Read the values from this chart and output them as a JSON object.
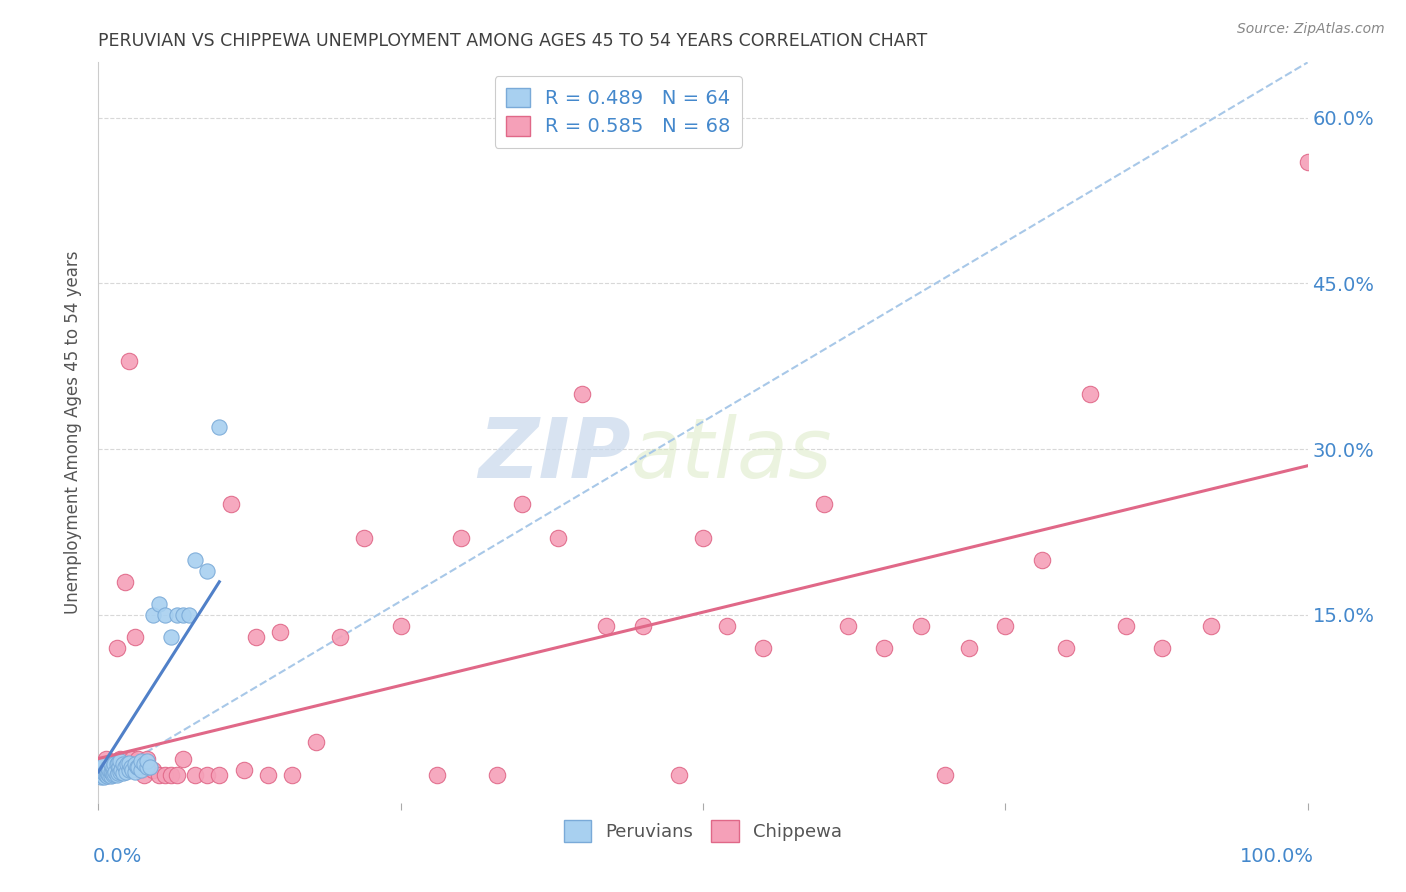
{
  "title": "PERUVIAN VS CHIPPEWA UNEMPLOYMENT AMONG AGES 45 TO 54 YEARS CORRELATION CHART",
  "source": "Source: ZipAtlas.com",
  "ylabel": "Unemployment Among Ages 45 to 54 years",
  "yticks": [
    0.0,
    0.15,
    0.3,
    0.45,
    0.6
  ],
  "ytick_labels_right": [
    "15.0%",
    "30.0%",
    "45.0%",
    "60.0%"
  ],
  "xlim": [
    0.0,
    1.0
  ],
  "ylim": [
    -0.02,
    0.65
  ],
  "legend_entries": [
    {
      "label": "R = 0.489   N = 64",
      "color": "#a8d0f0",
      "edge": "#7aaad8"
    },
    {
      "label": "R = 0.585   N = 68",
      "color": "#f5a0b8",
      "edge": "#e06888"
    }
  ],
  "peruvian_color": "#a8d0f0",
  "peruvian_edge": "#7aaad8",
  "chippewa_color": "#f5a0b8",
  "chippewa_edge": "#e06888",
  "trend_peruvian_color": "#5080c8",
  "trend_chippewa_color": "#e06888",
  "diag_color": "#a8c8e8",
  "watermark_color": "#dde8f5",
  "background_color": "#ffffff",
  "grid_color": "#d8d8d8",
  "title_color": "#404040",
  "axis_label_color": "#4488cc",
  "source_color": "#888888",
  "peruvian_x": [
    0.0,
    0.0,
    0.002,
    0.002,
    0.003,
    0.003,
    0.004,
    0.005,
    0.005,
    0.005,
    0.006,
    0.006,
    0.007,
    0.007,
    0.008,
    0.008,
    0.009,
    0.009,
    0.01,
    0.01,
    0.01,
    0.011,
    0.012,
    0.012,
    0.013,
    0.013,
    0.014,
    0.015,
    0.015,
    0.016,
    0.016,
    0.017,
    0.018,
    0.018,
    0.019,
    0.02,
    0.02,
    0.022,
    0.023,
    0.024,
    0.025,
    0.025,
    0.027,
    0.028,
    0.03,
    0.03,
    0.032,
    0.033,
    0.035,
    0.035,
    0.038,
    0.04,
    0.04,
    0.043,
    0.045,
    0.05,
    0.055,
    0.06,
    0.065,
    0.07,
    0.075,
    0.08,
    0.09,
    0.1
  ],
  "peruvian_y": [
    0.005,
    0.01,
    0.003,
    0.007,
    0.005,
    0.012,
    0.004,
    0.003,
    0.007,
    0.015,
    0.005,
    0.01,
    0.004,
    0.008,
    0.006,
    0.012,
    0.005,
    0.01,
    0.004,
    0.008,
    0.015,
    0.007,
    0.005,
    0.012,
    0.006,
    0.015,
    0.008,
    0.005,
    0.015,
    0.007,
    0.016,
    0.012,
    0.008,
    0.018,
    0.01,
    0.007,
    0.015,
    0.012,
    0.008,
    0.015,
    0.01,
    0.016,
    0.012,
    0.01,
    0.008,
    0.015,
    0.012,
    0.012,
    0.01,
    0.018,
    0.015,
    0.012,
    0.018,
    0.012,
    0.15,
    0.16,
    0.15,
    0.13,
    0.15,
    0.15,
    0.15,
    0.2,
    0.19,
    0.32
  ],
  "chippewa_x": [
    0.0,
    0.002,
    0.003,
    0.005,
    0.006,
    0.007,
    0.008,
    0.009,
    0.01,
    0.012,
    0.013,
    0.015,
    0.016,
    0.018,
    0.02,
    0.022,
    0.025,
    0.028,
    0.03,
    0.033,
    0.035,
    0.038,
    0.04,
    0.045,
    0.05,
    0.055,
    0.06,
    0.065,
    0.07,
    0.08,
    0.09,
    0.1,
    0.11,
    0.12,
    0.13,
    0.14,
    0.15,
    0.16,
    0.18,
    0.2,
    0.22,
    0.25,
    0.28,
    0.3,
    0.33,
    0.35,
    0.38,
    0.4,
    0.42,
    0.45,
    0.48,
    0.5,
    0.52,
    0.55,
    0.6,
    0.62,
    0.65,
    0.68,
    0.7,
    0.72,
    0.75,
    0.78,
    0.8,
    0.82,
    0.85,
    0.88,
    0.92,
    1.0
  ],
  "chippewa_y": [
    0.005,
    0.01,
    0.015,
    0.008,
    0.02,
    0.01,
    0.005,
    0.015,
    0.01,
    0.008,
    0.015,
    0.12,
    0.01,
    0.02,
    0.01,
    0.18,
    0.38,
    0.02,
    0.13,
    0.02,
    0.01,
    0.005,
    0.02,
    0.01,
    0.005,
    0.005,
    0.005,
    0.005,
    0.02,
    0.005,
    0.005,
    0.005,
    0.25,
    0.01,
    0.13,
    0.005,
    0.135,
    0.005,
    0.035,
    0.13,
    0.22,
    0.14,
    0.005,
    0.22,
    0.005,
    0.25,
    0.22,
    0.35,
    0.14,
    0.14,
    0.005,
    0.22,
    0.14,
    0.12,
    0.25,
    0.14,
    0.12,
    0.14,
    0.005,
    0.12,
    0.14,
    0.2,
    0.12,
    0.35,
    0.14,
    0.12,
    0.14,
    0.56
  ],
  "peruvian_trend_x": [
    0.0,
    0.1
  ],
  "peruvian_trend_y": [
    0.008,
    0.18
  ],
  "chippewa_trend_x": [
    0.0,
    1.0
  ],
  "chippewa_trend_y": [
    0.02,
    0.285
  ]
}
